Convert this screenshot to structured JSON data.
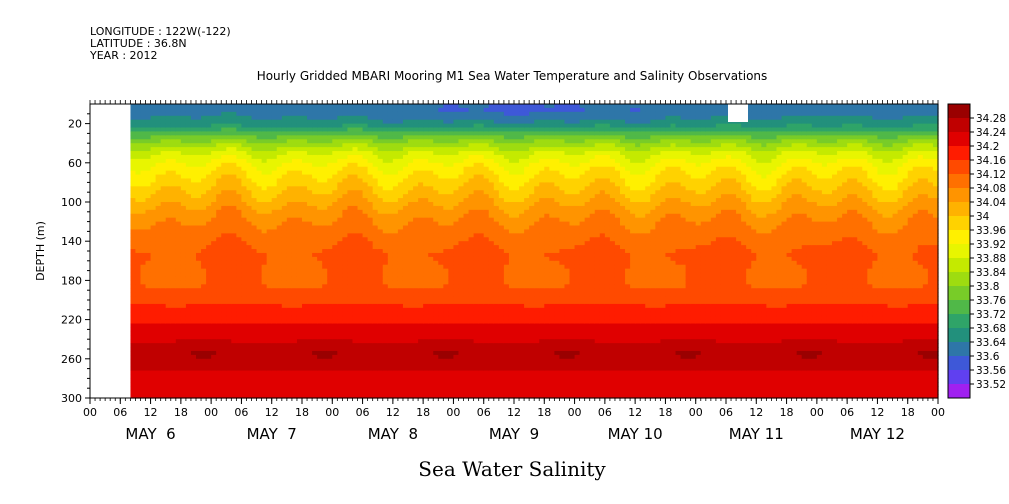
{
  "header": {
    "longitude": "LONGITUDE : 122W(-122)",
    "latitude": "LATITUDE : 36.8N",
    "year": "YEAR : 2012"
  },
  "chart_data": {
    "type": "heatmap",
    "title": "Hourly Gridded MBARI Mooring M1 Sea Water Temperature and Salinity Observations",
    "xlabel": "Sea Water Salinity",
    "ylabel": "DEPTH (m)",
    "ylim": [
      300,
      0
    ],
    "y_ticks": [
      20,
      60,
      100,
      140,
      180,
      220,
      260,
      300
    ],
    "x_range_hours": [
      0,
      168
    ],
    "x_hour_ticks": [
      "00",
      "06",
      "12",
      "18",
      "00",
      "06",
      "12",
      "18",
      "00",
      "06",
      "12",
      "18",
      "00",
      "06",
      "12",
      "18",
      "00",
      "06",
      "12",
      "18",
      "00",
      "06",
      "12",
      "18",
      "00",
      "06",
      "12",
      "18",
      "00"
    ],
    "x_day_labels": [
      "MAY  6",
      "MAY  7",
      "MAY  8",
      "MAY  9",
      "MAY 10",
      "MAY 11",
      "MAY 12"
    ],
    "data_start_hour": 8,
    "colorbar_labels": [
      "34.28",
      "34.24",
      "34.2",
      "34.16",
      "34.12",
      "34.08",
      "34.04",
      "34",
      "33.96",
      "33.92",
      "33.88",
      "33.84",
      "33.8",
      "33.76",
      "33.72",
      "33.68",
      "33.64",
      "33.6",
      "33.56",
      "33.52"
    ],
    "colorbar_colors": [
      "#9a0000",
      "#c00000",
      "#e00000",
      "#ff1c00",
      "#ff4a00",
      "#ff7000",
      "#ff9400",
      "#ffb200",
      "#ffd200",
      "#fff000",
      "#e8f500",
      "#c4ea00",
      "#9edc10",
      "#78cc28",
      "#50b848",
      "#2fa468",
      "#22907c",
      "#2e76a8",
      "#3e58d8",
      "#6040f0",
      "#a020f0"
    ],
    "profile": [
      [
        5,
        33.62
      ],
      [
        20,
        33.66
      ],
      [
        35,
        33.78
      ],
      [
        50,
        33.88
      ],
      [
        65,
        33.94
      ],
      [
        80,
        33.98
      ],
      [
        95,
        34.02
      ],
      [
        110,
        34.06
      ],
      [
        125,
        34.09
      ],
      [
        140,
        34.11
      ],
      [
        155,
        34.13
      ],
      [
        170,
        34.12
      ],
      [
        185,
        34.12
      ],
      [
        200,
        34.15
      ],
      [
        215,
        34.18
      ],
      [
        230,
        34.21
      ],
      [
        245,
        34.24
      ],
      [
        255,
        34.26
      ],
      [
        265,
        34.25
      ],
      [
        280,
        34.22
      ],
      [
        300,
        34.2
      ]
    ],
    "missing_region": {
      "x_hours": [
        0,
        8
      ],
      "depth": [
        0,
        300
      ]
    }
  }
}
